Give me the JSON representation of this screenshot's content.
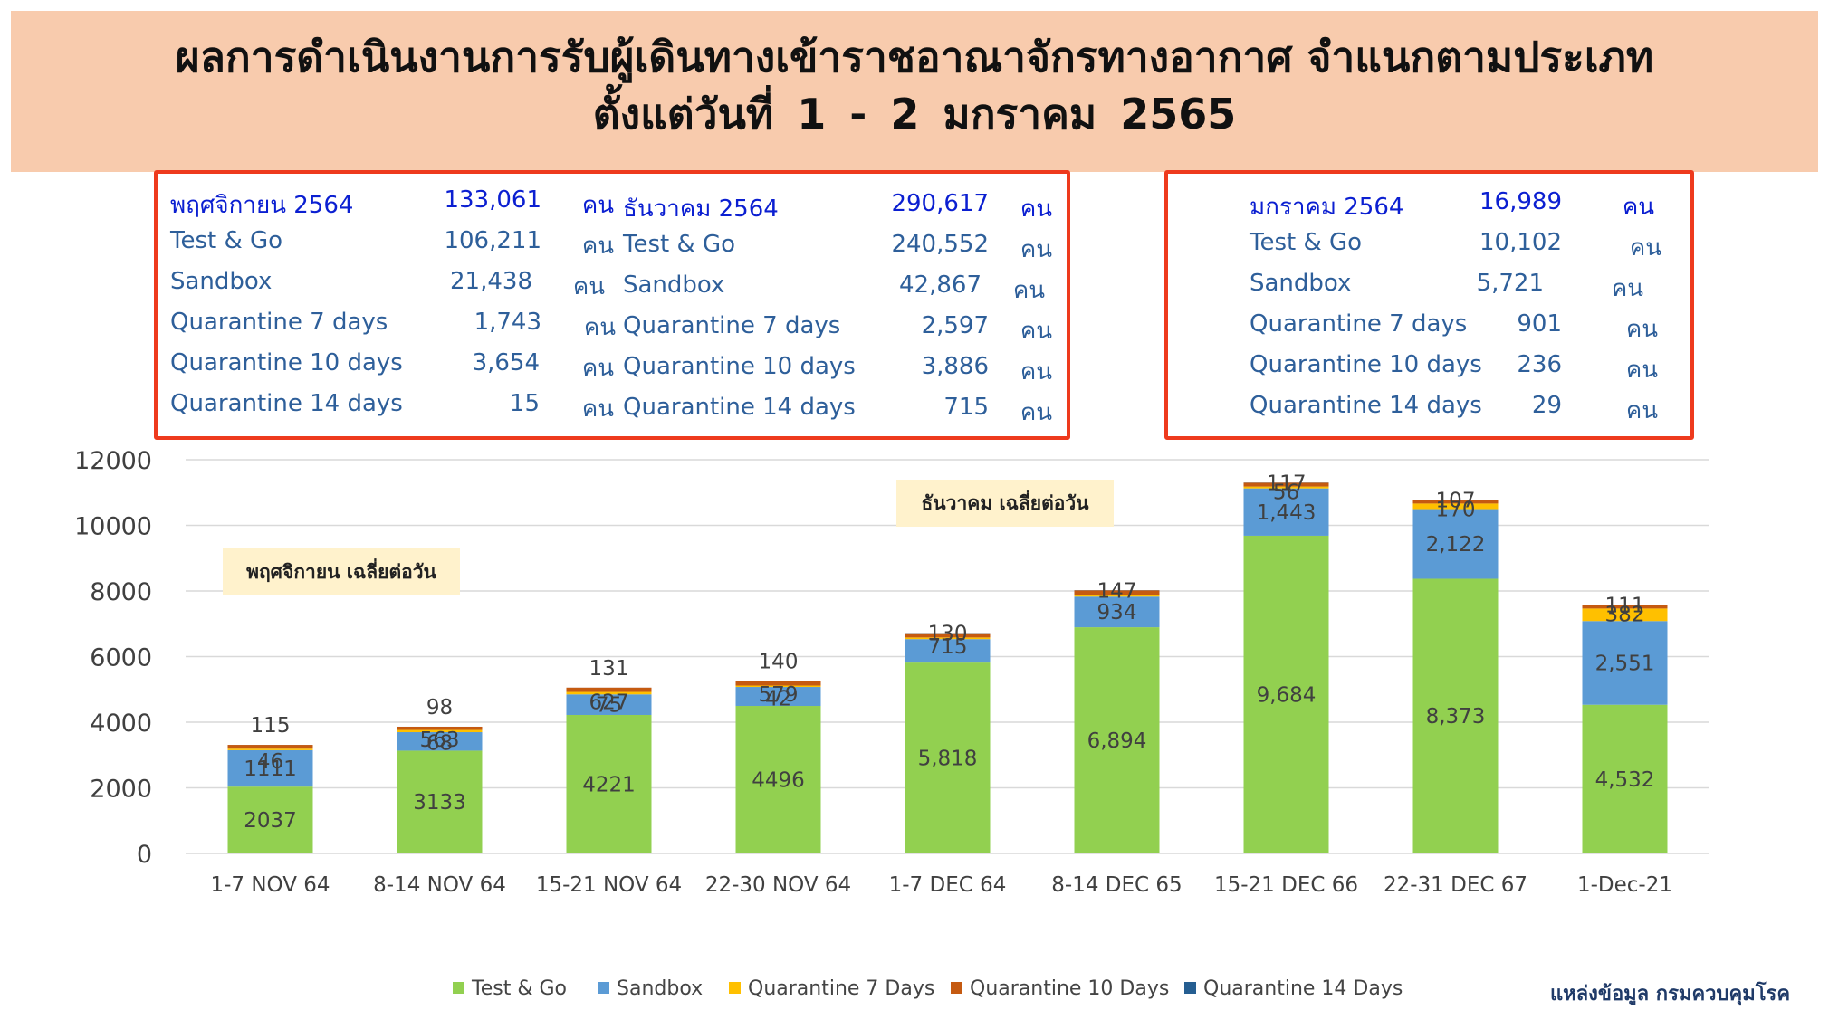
{
  "header": {
    "line1": "ผลการดำเนินงานการรับผู้เดินทางเข้าราชอาณาจักรทางอากาศ จำแนกตามประเภท",
    "line2": "ตั้งแต่วันที่  1 - 2  มกราคม  2565"
  },
  "summary": {
    "november": {
      "title": "พฤศจิกายน 2564",
      "total": "133,061",
      "unit": "คน",
      "rows": [
        {
          "label": "Test & Go",
          "value": "106,211"
        },
        {
          "label": "Sandbox",
          "value": "21,438"
        },
        {
          "label": "Quarantine 7 days",
          "value": "1,743"
        },
        {
          "label": "Quarantine 10 days",
          "value": "3,654"
        },
        {
          "label": "Quarantine 14 days",
          "value": "15"
        }
      ]
    },
    "december": {
      "title": "ธันวาคม  2564",
      "total": "290,617",
      "unit": "คน",
      "rows": [
        {
          "label": "Test & Go",
          "value": "240,552"
        },
        {
          "label": "Sandbox",
          "value": "42,867"
        },
        {
          "label": "Quarantine 7 days",
          "value": "2,597"
        },
        {
          "label": "Quarantine 10 days",
          "value": "3,886"
        },
        {
          "label": "Quarantine 14 days",
          "value": "715"
        }
      ]
    },
    "january": {
      "title": "มกราคม  2564",
      "total": "16,989",
      "unit": "คน",
      "rows": [
        {
          "label": "Test & Go",
          "value": "10,102"
        },
        {
          "label": "Sandbox",
          "value": "5,721"
        },
        {
          "label": "Quarantine 7 days",
          "value": "901"
        },
        {
          "label": "Quarantine 10 days",
          "value": "236"
        },
        {
          "label": "Quarantine 14 days",
          "value": "29"
        }
      ]
    }
  },
  "notes": {
    "november_avg": "พฤศจิกายน เฉลี่ยต่อวัน",
    "december_avg": "ธันวาคม เฉลี่ยต่อวัน"
  },
  "source": "แหล่งข้อมูล กรมควบคุมโรค",
  "colors": {
    "test_and_go": "#92d050",
    "sandbox": "#5b9bd5",
    "q7": "#ffc000",
    "q10": "#c55a11",
    "q14": "#255e91",
    "box_border": "#ee3a1d",
    "header_bg": "#f8cbad"
  },
  "chart_data": {
    "type": "bar",
    "stacked": true,
    "categories": [
      "1-7 NOV 64",
      "8-14 NOV 64",
      "15-21 NOV 64",
      "22-30 NOV 64",
      "1-7 DEC 64",
      "8-14 DEC 65",
      "15-21 DEC 66",
      "22-31 DEC 67",
      "1-Dec-21"
    ],
    "ylim": [
      0,
      12000
    ],
    "yticks": [
      0,
      2000,
      4000,
      6000,
      8000,
      10000,
      12000
    ],
    "grid": true,
    "legend_position": "bottom",
    "series": [
      {
        "name": "Test & Go",
        "color": "#92d050",
        "values": [
          2037,
          3133,
          4221,
          4496,
          5818,
          6894,
          9684,
          8373,
          4532
        ],
        "labels": [
          "2037",
          "3133",
          "4221",
          "4496",
          "5,818",
          "6,894",
          "9,684",
          "8,373",
          "4,532"
        ]
      },
      {
        "name": "Sandbox",
        "color": "#5b9bd5",
        "values": [
          1111,
          563,
          627,
          579,
          715,
          934,
          1443,
          2122,
          2551
        ],
        "labels": [
          "1111",
          "563",
          "627",
          "579",
          "715",
          "934",
          "1,443",
          "2,122",
          "2,551"
        ]
      },
      {
        "name": "Quarantine 7 Days",
        "color": "#ffc000",
        "values": [
          46,
          68,
          75,
          42,
          50,
          45,
          56,
          170,
          382
        ],
        "labels": [
          "46",
          "68",
          "75",
          "42",
          "",
          "",
          "56",
          "170",
          "382"
        ]
      },
      {
        "name": "Quarantine 10 Days",
        "color": "#c55a11",
        "values": [
          115,
          98,
          131,
          140,
          130,
          147,
          117,
          107,
          111
        ],
        "labels": [
          "115",
          "98",
          "131",
          "140",
          "130",
          "147",
          "117",
          "107",
          "111"
        ]
      },
      {
        "name": "Quarantine 14 Days",
        "color": "#255e91",
        "values": [
          1,
          1,
          1,
          1,
          5,
          5,
          5,
          5,
          5
        ],
        "labels": [
          "",
          "",
          "",
          "",
          "",
          "",
          "",
          "",
          ""
        ]
      }
    ]
  }
}
